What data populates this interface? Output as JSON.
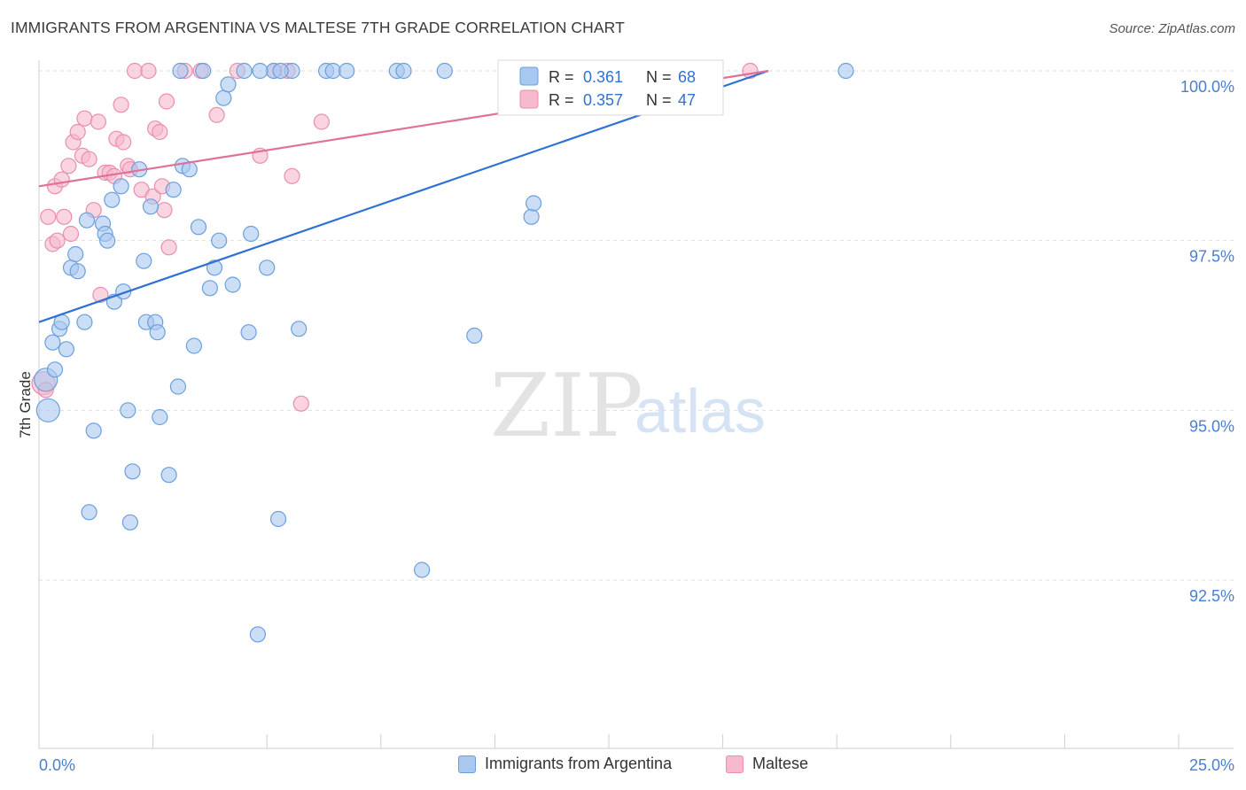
{
  "header": {
    "title": "IMMIGRANTS FROM ARGENTINA VS MALTESE 7TH GRADE CORRELATION CHART",
    "source": "Source: ZipAtlas.com"
  },
  "watermark": {
    "zip": "ZIP",
    "atlas": "atlas"
  },
  "legend_top": {
    "rows": [
      {
        "r_label": "R =",
        "r_value": "0.361",
        "n_label": "N =",
        "n_value": "68"
      },
      {
        "r_label": "R =",
        "r_value": "0.357",
        "n_label": "N =",
        "n_value": "47"
      }
    ]
  },
  "legend_bottom": {
    "items": [
      {
        "label": "Immigrants from Argentina"
      },
      {
        "label": "Maltese"
      }
    ]
  },
  "colors": {
    "blue_fill": "#a9c8f0",
    "blue_stroke": "#6b9fdc",
    "blue_line": "#2f72d3",
    "pink_fill": "#f7b9cd",
    "pink_stroke": "#e98eac",
    "pink_line": "#e0709a",
    "tick_label": "#4a7fd0",
    "grid": "#dcdcdc"
  },
  "chart_data": {
    "type": "scatter",
    "title": "IMMIGRANTS FROM ARGENTINA VS MALTESE 7TH GRADE CORRELATION CHART",
    "xlabel": "",
    "ylabel": "7th Grade",
    "xlim": [
      0,
      25
    ],
    "ylim": [
      90.2,
      100.2
    ],
    "x_tick_labels": [
      "0.0%",
      "25.0%"
    ],
    "y_ticks": [
      92.5,
      95.0,
      97.5,
      100.0
    ],
    "y_tick_labels": [
      "92.5%",
      "95.0%",
      "97.5%",
      "100.0%"
    ],
    "grid": true,
    "legend_position": "top-center",
    "series": [
      {
        "name": "Immigrants from Argentina",
        "color": "#a9c8f0",
        "r": 0.361,
        "n": 68,
        "trend": {
          "x": [
            0,
            16.0
          ],
          "y": [
            96.3,
            100.0
          ]
        },
        "points": [
          [
            0.15,
            95.45
          ],
          [
            0.2,
            95.0
          ],
          [
            0.3,
            96.0
          ],
          [
            0.35,
            95.6
          ],
          [
            0.45,
            96.2
          ],
          [
            0.5,
            96.3
          ],
          [
            0.6,
            95.9
          ],
          [
            0.7,
            97.1
          ],
          [
            0.8,
            97.3
          ],
          [
            0.85,
            97.05
          ],
          [
            1.0,
            96.3
          ],
          [
            1.05,
            97.8
          ],
          [
            1.2,
            94.7
          ],
          [
            1.4,
            97.75
          ],
          [
            1.45,
            97.6
          ],
          [
            1.5,
            97.5
          ],
          [
            1.6,
            98.1
          ],
          [
            1.65,
            96.6
          ],
          [
            1.8,
            98.3
          ],
          [
            1.85,
            96.75
          ],
          [
            1.95,
            95.0
          ],
          [
            2.05,
            94.1
          ],
          [
            2.2,
            98.55
          ],
          [
            2.3,
            97.2
          ],
          [
            2.35,
            96.3
          ],
          [
            2.45,
            98.0
          ],
          [
            2.55,
            96.3
          ],
          [
            2.6,
            96.15
          ],
          [
            2.65,
            94.9
          ],
          [
            2.85,
            94.05
          ],
          [
            2.95,
            98.25
          ],
          [
            3.05,
            95.35
          ],
          [
            3.15,
            98.6
          ],
          [
            3.3,
            98.55
          ],
          [
            3.4,
            95.95
          ],
          [
            3.5,
            97.7
          ],
          [
            3.75,
            96.8
          ],
          [
            3.85,
            97.1
          ],
          [
            3.95,
            97.5
          ],
          [
            4.05,
            99.6
          ],
          [
            4.15,
            99.8
          ],
          [
            4.25,
            96.85
          ],
          [
            4.5,
            100.0
          ],
          [
            4.6,
            96.15
          ],
          [
            4.65,
            97.6
          ],
          [
            4.8,
            91.7
          ],
          [
            5.0,
            97.1
          ],
          [
            5.15,
            100.0
          ],
          [
            5.25,
            93.4
          ],
          [
            5.55,
            100.0
          ],
          [
            5.7,
            96.2
          ],
          [
            6.3,
            100.0
          ],
          [
            6.45,
            100.0
          ],
          [
            6.75,
            100.0
          ],
          [
            7.85,
            100.0
          ],
          [
            8.0,
            100.0
          ],
          [
            8.4,
            92.65
          ],
          [
            8.9,
            100.0
          ],
          [
            9.55,
            96.1
          ],
          [
            10.8,
            97.85
          ],
          [
            10.85,
            98.05
          ],
          [
            17.7,
            100.0
          ],
          [
            1.1,
            93.5
          ],
          [
            2.0,
            93.35
          ],
          [
            3.1,
            100.0
          ],
          [
            3.6,
            100.0
          ],
          [
            4.85,
            100.0
          ],
          [
            5.3,
            100.0
          ]
        ]
      },
      {
        "name": "Maltese",
        "color": "#f7b9cd",
        "r": 0.357,
        "n": 47,
        "trend": {
          "x": [
            0,
            16.0
          ],
          "y": [
            98.3,
            100.0
          ]
        },
        "points": [
          [
            0.1,
            95.4
          ],
          [
            0.2,
            97.85
          ],
          [
            0.3,
            97.45
          ],
          [
            0.35,
            98.3
          ],
          [
            0.4,
            97.5
          ],
          [
            0.5,
            98.4
          ],
          [
            0.55,
            97.85
          ],
          [
            0.65,
            98.6
          ],
          [
            0.7,
            97.6
          ],
          [
            0.75,
            98.95
          ],
          [
            0.85,
            99.1
          ],
          [
            0.95,
            98.75
          ],
          [
            1.0,
            99.3
          ],
          [
            1.1,
            98.7
          ],
          [
            1.2,
            97.95
          ],
          [
            1.3,
            99.25
          ],
          [
            1.35,
            96.7
          ],
          [
            1.45,
            98.5
          ],
          [
            1.55,
            98.5
          ],
          [
            1.65,
            98.45
          ],
          [
            1.7,
            99.0
          ],
          [
            1.8,
            99.5
          ],
          [
            1.85,
            98.95
          ],
          [
            1.95,
            98.6
          ],
          [
            2.0,
            98.55
          ],
          [
            2.1,
            100.0
          ],
          [
            2.25,
            98.25
          ],
          [
            2.4,
            100.0
          ],
          [
            2.5,
            98.15
          ],
          [
            2.55,
            99.15
          ],
          [
            2.65,
            99.1
          ],
          [
            2.7,
            98.3
          ],
          [
            2.75,
            97.95
          ],
          [
            2.8,
            99.55
          ],
          [
            2.85,
            97.4
          ],
          [
            3.2,
            100.0
          ],
          [
            3.55,
            100.0
          ],
          [
            3.9,
            99.35
          ],
          [
            4.35,
            100.0
          ],
          [
            4.85,
            98.75
          ],
          [
            5.15,
            100.0
          ],
          [
            5.45,
            100.0
          ],
          [
            5.55,
            98.45
          ],
          [
            5.75,
            95.1
          ],
          [
            6.2,
            99.25
          ],
          [
            15.6,
            100.0
          ],
          [
            0.15,
            95.3
          ]
        ]
      }
    ]
  }
}
